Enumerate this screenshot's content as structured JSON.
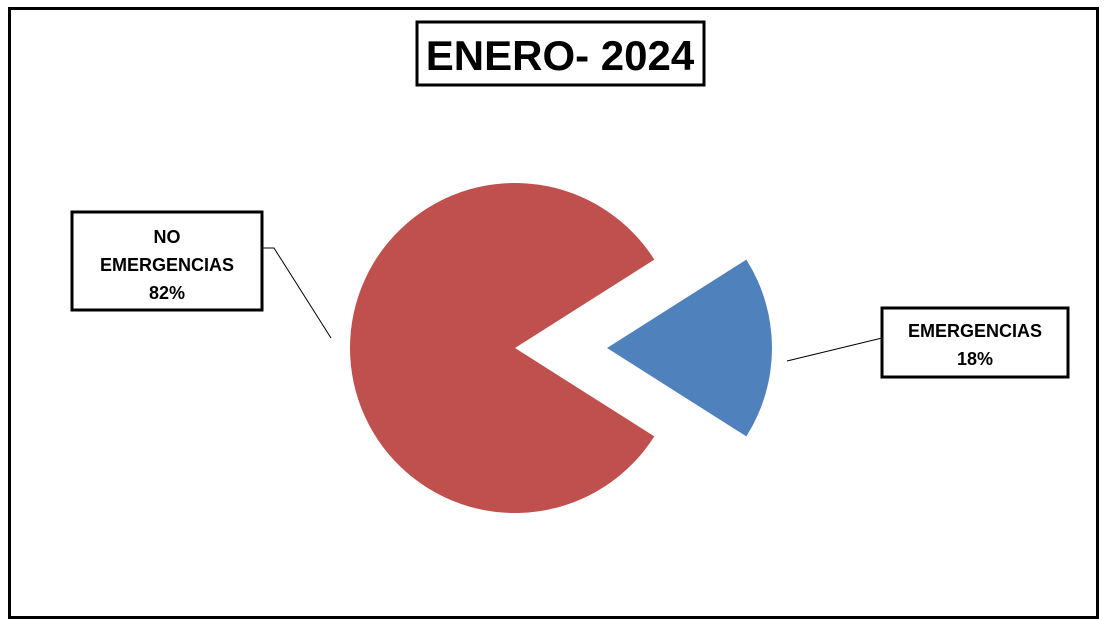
{
  "chart_data": {
    "type": "pie",
    "title": "ENERO- 2024",
    "slices": [
      {
        "label_lines": [
          "NO",
          "EMERGENCIAS"
        ],
        "percent_label": "82%",
        "value": 82,
        "color": "#c0504d",
        "exploded": false
      },
      {
        "label_lines": [
          "EMERGENCIAS"
        ],
        "percent_label": "18%",
        "value": 18,
        "color": "#4f81bd",
        "exploded": true
      }
    ],
    "legend": "none",
    "data_labels": "outside-with-leader-lines"
  }
}
